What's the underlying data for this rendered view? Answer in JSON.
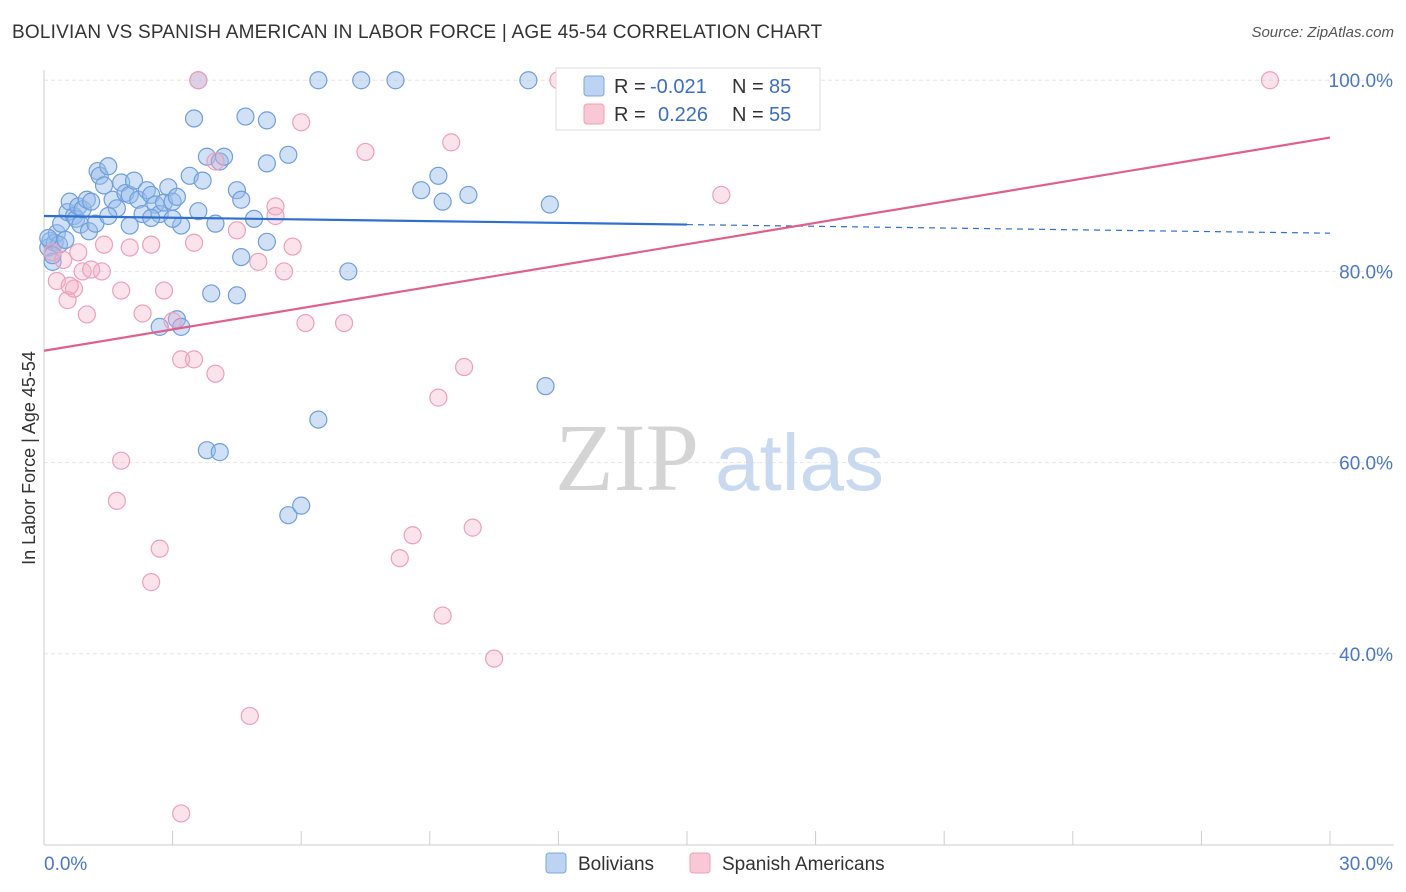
{
  "title": "BOLIVIAN VS SPANISH AMERICAN IN LABOR FORCE | AGE 45-54 CORRELATION CHART",
  "source": "Source: ZipAtlas.com",
  "watermark": {
    "zip": "ZIP",
    "atlas": "atlas"
  },
  "colors": {
    "blue": "#7aa8e0",
    "blue_line": "#2f6fd0",
    "pink": "#f0a0b8",
    "pink_line": "#e0608c",
    "grid": "#e6e6e6",
    "axis_text": "#4a78c8"
  },
  "chart_data": {
    "type": "scatter",
    "title": "BOLIVIAN VS SPANISH AMERICAN IN LABOR FORCE | AGE 45-54 CORRELATION CHART",
    "xlabel": "",
    "ylabel": "In Labor Force | Age 45-54",
    "xlim": [
      0,
      30
    ],
    "ylim": [
      20,
      104
    ],
    "y_ticks": [
      {
        "value": 100,
        "label": "100.0%"
      },
      {
        "value": 80,
        "label": "80.0%"
      },
      {
        "value": 60,
        "label": "60.0%"
      },
      {
        "value": 40,
        "label": "40.0%"
      }
    ],
    "x_tick_labels": [
      {
        "value": 0,
        "label": "0.0%"
      },
      {
        "value": 30,
        "label": "30.0%"
      }
    ],
    "x_minor_ticks": [
      0,
      3,
      6,
      9,
      12,
      15,
      18,
      21,
      24,
      27,
      30
    ],
    "legend": [
      {
        "name": "Bolivians",
        "r_label": "R =",
        "r": "-0.021",
        "n_label": "N =",
        "n": "85"
      },
      {
        "name": "Spanish Americans",
        "r_label": "R =",
        "r": "0.226",
        "n_label": "N =",
        "n": "55"
      }
    ],
    "series": [
      {
        "name": "Bolivians",
        "trend": {
          "x0": 0,
          "y0": 85.8,
          "x1": 15,
          "y1": 84.9,
          "dashed_to_x": 30,
          "dashed_to_y": 84.0
        },
        "points": [
          [
            0.1,
            82.5
          ],
          [
            0.15,
            83.2
          ],
          [
            0.2,
            81.0
          ],
          [
            0.25,
            83.0
          ],
          [
            0.3,
            84.0
          ],
          [
            0.35,
            82.8
          ],
          [
            0.4,
            85.0
          ],
          [
            0.5,
            83.3
          ],
          [
            0.55,
            86.2
          ],
          [
            0.6,
            87.3
          ],
          [
            0.7,
            85.8
          ],
          [
            0.75,
            85.5
          ],
          [
            0.8,
            86.8
          ],
          [
            0.85,
            84.9
          ],
          [
            0.9,
            86.5
          ],
          [
            1.0,
            87.5
          ],
          [
            1.05,
            84.2
          ],
          [
            1.1,
            87.3
          ],
          [
            1.2,
            85.0
          ],
          [
            1.25,
            90.5
          ],
          [
            1.3,
            90.0
          ],
          [
            1.4,
            89.0
          ],
          [
            1.5,
            91.0
          ],
          [
            1.6,
            87.5
          ],
          [
            1.7,
            86.6
          ],
          [
            1.8,
            89.3
          ],
          [
            1.9,
            88.2
          ],
          [
            2.0,
            88.0
          ],
          [
            2.1,
            89.5
          ],
          [
            2.2,
            87.5
          ],
          [
            2.3,
            86.0
          ],
          [
            2.4,
            88.5
          ],
          [
            2.5,
            88.0
          ],
          [
            2.6,
            87.0
          ],
          [
            2.7,
            86.0
          ],
          [
            2.8,
            87.2
          ],
          [
            2.9,
            88.8
          ],
          [
            3.0,
            87.3
          ],
          [
            3.1,
            87.8
          ],
          [
            3.2,
            84.8
          ],
          [
            3.4,
            90.0
          ],
          [
            3.6,
            86.3
          ],
          [
            3.7,
            89.5
          ],
          [
            3.8,
            92.0
          ],
          [
            4.1,
            91.5
          ],
          [
            4.2,
            92.0
          ],
          [
            4.5,
            88.5
          ],
          [
            4.6,
            87.5
          ],
          [
            3.5,
            96.0
          ],
          [
            4.7,
            96.2
          ],
          [
            5.2,
            95.8
          ],
          [
            5.2,
            91.3
          ],
          [
            5.7,
            92.2
          ],
          [
            3.6,
            100.0
          ],
          [
            6.4,
            100.0
          ],
          [
            7.4,
            100.0
          ],
          [
            8.2,
            100.0
          ],
          [
            11.3,
            100.0
          ],
          [
            8.8,
            88.5
          ],
          [
            9.2,
            90.0
          ],
          [
            9.3,
            87.3
          ],
          [
            9.9,
            88.0
          ],
          [
            11.8,
            87.0
          ],
          [
            4.0,
            85.0
          ],
          [
            4.9,
            85.5
          ],
          [
            3.0,
            85.5
          ],
          [
            2.5,
            85.6
          ],
          [
            2.0,
            84.8
          ],
          [
            1.5,
            85.8
          ],
          [
            5.2,
            83.1
          ],
          [
            4.6,
            81.5
          ],
          [
            7.1,
            80.0
          ],
          [
            3.9,
            77.7
          ],
          [
            4.5,
            77.5
          ],
          [
            2.7,
            74.2
          ],
          [
            3.1,
            75.0
          ],
          [
            3.2,
            74.2
          ],
          [
            11.7,
            68.0
          ],
          [
            6.4,
            64.5
          ],
          [
            3.8,
            61.3
          ],
          [
            4.1,
            61.1
          ],
          [
            5.7,
            54.5
          ],
          [
            6.0,
            55.5
          ],
          [
            0.2,
            81.7
          ],
          [
            0.1,
            83.5
          ]
        ]
      },
      {
        "name": "Spanish Americans",
        "trend": {
          "x0": 0,
          "y0": 71.7,
          "x1": 30,
          "y1": 94.0
        },
        "points": [
          [
            0.2,
            82.0
          ],
          [
            0.3,
            79.0
          ],
          [
            0.45,
            81.2
          ],
          [
            0.55,
            77.0
          ],
          [
            0.7,
            78.2
          ],
          [
            0.8,
            82.0
          ],
          [
            0.9,
            80.0
          ],
          [
            1.0,
            75.5
          ],
          [
            1.35,
            80.0
          ],
          [
            1.4,
            82.8
          ],
          [
            1.8,
            78.0
          ],
          [
            2.0,
            82.5
          ],
          [
            2.3,
            75.6
          ],
          [
            2.5,
            82.8
          ],
          [
            2.8,
            78.0
          ],
          [
            3.0,
            74.8
          ],
          [
            3.2,
            70.8
          ],
          [
            3.5,
            83.0
          ],
          [
            3.5,
            70.8
          ],
          [
            4.0,
            69.3
          ],
          [
            4.5,
            84.3
          ],
          [
            5.0,
            81.0
          ],
          [
            5.4,
            86.8
          ],
          [
            5.6,
            80.0
          ],
          [
            5.8,
            82.6
          ],
          [
            6.1,
            74.6
          ],
          [
            7.0,
            74.6
          ],
          [
            7.5,
            92.5
          ],
          [
            9.2,
            66.8
          ],
          [
            9.5,
            93.5
          ],
          [
            9.8,
            70.0
          ],
          [
            12.0,
            100.0
          ],
          [
            12.5,
            100.0
          ],
          [
            17.6,
            100.0
          ],
          [
            17.8,
            100.0
          ],
          [
            28.6,
            100.0
          ],
          [
            15.8,
            88.0
          ],
          [
            4.0,
            91.5
          ],
          [
            5.4,
            85.8
          ],
          [
            6.0,
            95.6
          ],
          [
            1.8,
            60.2
          ],
          [
            1.7,
            56.0
          ],
          [
            2.7,
            51.0
          ],
          [
            2.5,
            47.5
          ],
          [
            8.3,
            50.0
          ],
          [
            8.6,
            52.4
          ],
          [
            9.3,
            44.0
          ],
          [
            10.0,
            53.2
          ],
          [
            10.5,
            39.5
          ],
          [
            4.8,
            33.5
          ],
          [
            3.2,
            23.3
          ],
          [
            3.6,
            100.0
          ],
          [
            12.2,
            100.0
          ],
          [
            0.6,
            78.5
          ],
          [
            1.1,
            80.2
          ]
        ]
      }
    ]
  }
}
